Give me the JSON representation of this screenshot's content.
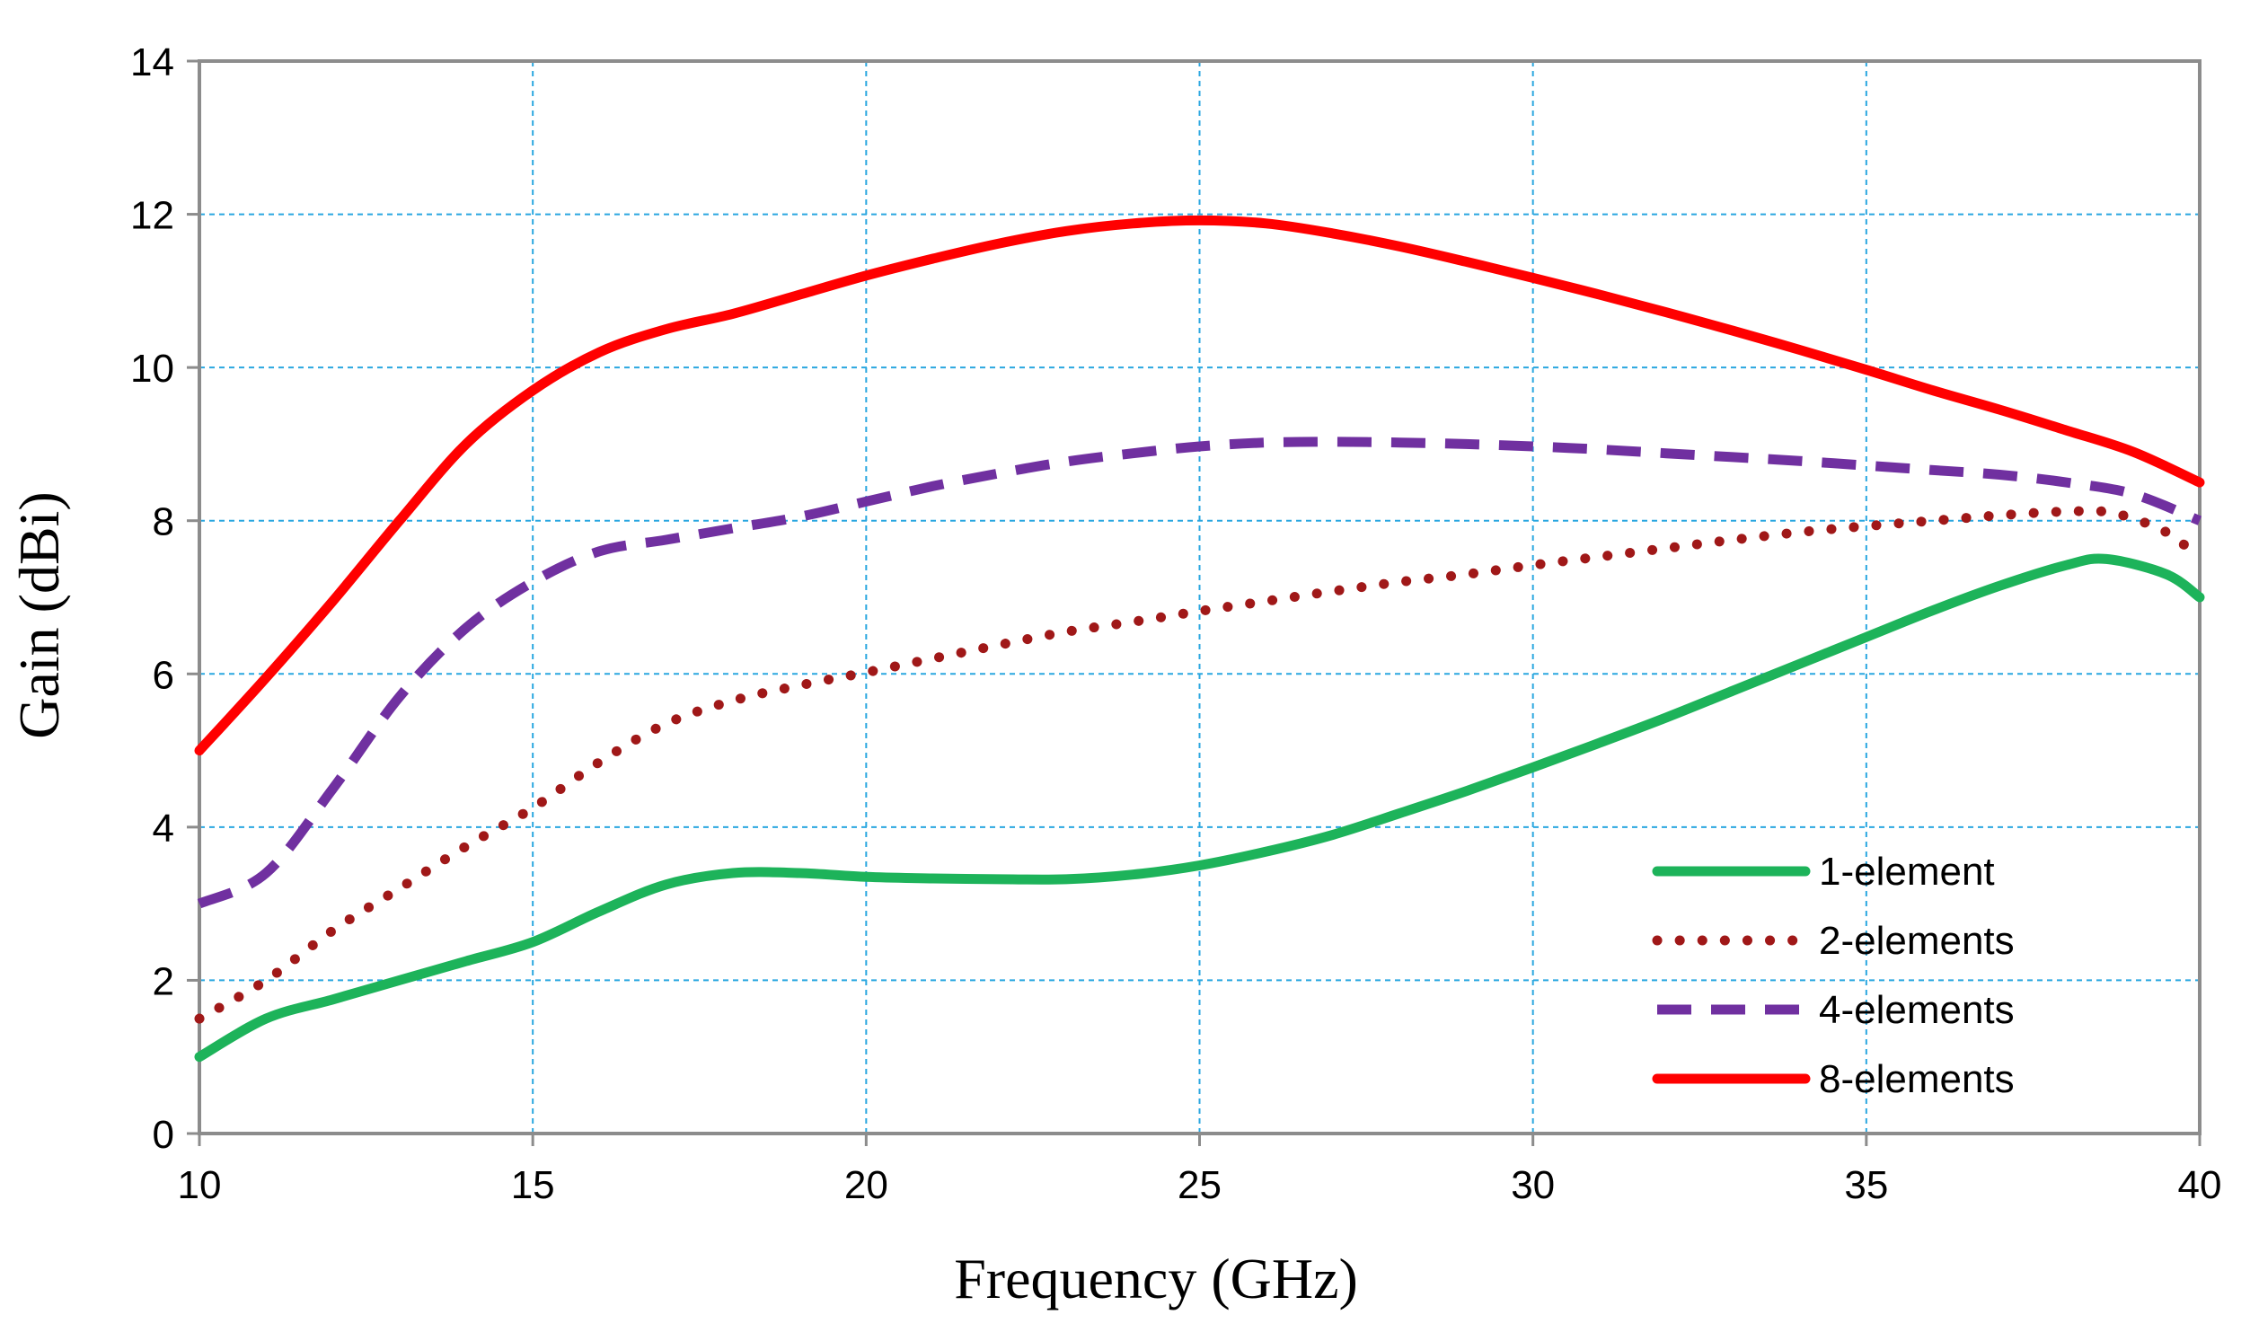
{
  "chart_data": {
    "type": "line",
    "title": "",
    "xlabel": "Frequency (GHz)",
    "ylabel": "Gain (dBi)",
    "xlim": [
      10,
      40
    ],
    "ylim": [
      0,
      14
    ],
    "xticks": [
      10,
      15,
      20,
      25,
      30,
      35,
      40
    ],
    "yticks": [
      0,
      2,
      4,
      6,
      8,
      10,
      12,
      14
    ],
    "grid": true,
    "legend_position": "bottom-right",
    "series": [
      {
        "name": "1-element",
        "color": "#1db35a",
        "style": "solid",
        "x": [
          10,
          11,
          12,
          13,
          14,
          15,
          16,
          17,
          18,
          19,
          20,
          21,
          22,
          23,
          24,
          25,
          26,
          27,
          28,
          29,
          30,
          31,
          32,
          33,
          34,
          35,
          36,
          37,
          38,
          38.6,
          39.5,
          40
        ],
        "y": [
          1.0,
          1.5,
          1.75,
          2.0,
          2.25,
          2.5,
          2.9,
          3.25,
          3.4,
          3.4,
          3.35,
          3.33,
          3.32,
          3.32,
          3.38,
          3.5,
          3.68,
          3.9,
          4.18,
          4.47,
          4.78,
          5.1,
          5.43,
          5.78,
          6.13,
          6.48,
          6.83,
          7.15,
          7.42,
          7.5,
          7.3,
          7.0
        ]
      },
      {
        "name": "2-elements",
        "color": "#a01818",
        "style": "dotted",
        "x": [
          10,
          11,
          12,
          13,
          14,
          15,
          16,
          17,
          18,
          19,
          20,
          21,
          22,
          23,
          24,
          25,
          26,
          27,
          28,
          29,
          30,
          31,
          32,
          33,
          34,
          35,
          36,
          37,
          38,
          38.7,
          39.5,
          40
        ],
        "y": [
          1.5,
          2.0,
          2.65,
          3.2,
          3.75,
          4.25,
          4.85,
          5.35,
          5.65,
          5.85,
          6.02,
          6.2,
          6.38,
          6.55,
          6.68,
          6.82,
          6.95,
          7.08,
          7.2,
          7.3,
          7.42,
          7.53,
          7.64,
          7.75,
          7.85,
          7.93,
          8.0,
          8.07,
          8.12,
          8.1,
          7.85,
          7.5
        ]
      },
      {
        "name": "4-elements",
        "color": "#7030a0",
        "style": "dashed",
        "x": [
          10,
          11,
          12,
          13,
          14,
          15,
          16,
          17,
          18,
          19,
          20,
          21,
          22,
          23,
          24,
          25,
          26,
          27,
          28,
          29,
          30,
          31,
          32,
          33,
          34,
          35,
          36,
          37,
          38,
          39,
          40
        ],
        "y": [
          3.0,
          3.4,
          4.5,
          5.7,
          6.6,
          7.2,
          7.6,
          7.75,
          7.9,
          8.05,
          8.25,
          8.45,
          8.62,
          8.77,
          8.88,
          8.97,
          9.02,
          9.03,
          9.02,
          9.0,
          8.97,
          8.93,
          8.88,
          8.83,
          8.78,
          8.72,
          8.66,
          8.6,
          8.5,
          8.35,
          8.0
        ]
      },
      {
        "name": "8-elements",
        "color": "#ff0000",
        "style": "solid",
        "x": [
          10,
          11,
          12,
          13,
          14,
          15,
          16,
          17,
          18,
          19,
          20,
          21,
          22,
          23,
          24,
          25,
          26,
          27,
          28,
          29,
          30,
          31,
          32,
          33,
          34,
          35,
          36,
          37,
          38,
          39,
          40
        ],
        "y": [
          5.0,
          5.95,
          6.95,
          8.0,
          9.0,
          9.7,
          10.2,
          10.5,
          10.7,
          10.95,
          11.2,
          11.42,
          11.62,
          11.78,
          11.88,
          11.92,
          11.88,
          11.75,
          11.58,
          11.38,
          11.17,
          10.95,
          10.72,
          10.48,
          10.23,
          9.97,
          9.7,
          9.45,
          9.18,
          8.9,
          8.5
        ]
      }
    ]
  }
}
